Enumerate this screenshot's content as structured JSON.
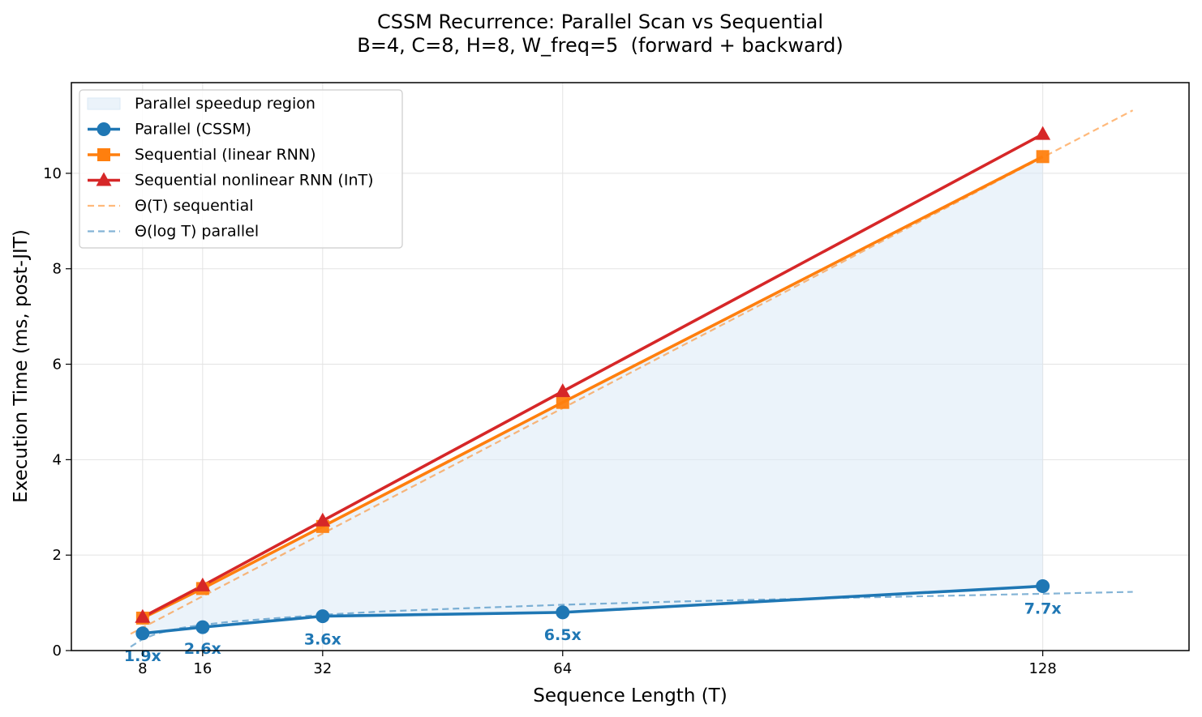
{
  "chart_data": {
    "type": "line",
    "title": "CSSM Recurrence: Parallel Scan vs Sequential",
    "subtitle": "B=4, C=8, H=8, W_freq=5  (forward + backward)",
    "xlabel": "Sequence Length (T)",
    "ylabel": "Execution Time (ms, post-JIT)",
    "x": [
      8,
      16,
      32,
      64,
      128
    ],
    "xlim": [
      -1.5,
      147.5
    ],
    "ylim": [
      0,
      11.9
    ],
    "xticks": [
      "8",
      "16",
      "32",
      "64",
      "128"
    ],
    "yticks": [
      "0",
      "2",
      "4",
      "6",
      "8",
      "10"
    ],
    "grid": true,
    "legend_position": "top-left",
    "series": [
      {
        "name": "Parallel (CSSM)",
        "kind": "line",
        "marker": "circle",
        "color": "#1f77b4",
        "values": [
          0.36,
          0.49,
          0.72,
          0.8,
          1.35
        ]
      },
      {
        "name": "Sequential (linear RNN)",
        "kind": "line",
        "marker": "square",
        "color": "#ff7f0e",
        "values": [
          0.68,
          1.3,
          2.6,
          5.2,
          10.35
        ]
      },
      {
        "name": "Sequential nonlinear RNN (InT)",
        "kind": "line",
        "marker": "triangle",
        "color": "#d62728",
        "values": [
          0.7,
          1.36,
          2.72,
          5.43,
          10.82
        ]
      }
    ],
    "reference_curves": [
      {
        "name": "Θ(T) sequential",
        "color": "#ff7f0e",
        "style": "dashed",
        "x": [
          6.4,
          140
        ],
        "values": [
          0.35,
          11.32
        ]
      },
      {
        "name": "Θ(log T) parallel",
        "color": "#1f77b4",
        "style": "dashed",
        "x": [
          6.4,
          8,
          10,
          13,
          16,
          20,
          25,
          32,
          40,
          50,
          64,
          80,
          100,
          128,
          140
        ],
        "values": [
          0.08,
          0.24,
          0.36,
          0.47,
          0.54,
          0.61,
          0.67,
          0.75,
          0.82,
          0.88,
          0.96,
          1.03,
          1.1,
          1.19,
          1.23
        ]
      }
    ],
    "fill_region": {
      "name": "Parallel speedup region",
      "color": "#dbeaf6"
    },
    "annotations": [
      {
        "x": 8,
        "y": -0.22,
        "text": "1.9x"
      },
      {
        "x": 16,
        "y": -0.07,
        "text": "2.6x"
      },
      {
        "x": 32,
        "y": 0.13,
        "text": "3.6x"
      },
      {
        "x": 64,
        "y": 0.22,
        "text": "6.5x"
      },
      {
        "x": 128,
        "y": 0.77,
        "text": "7.7x"
      }
    ],
    "legend": [
      {
        "label": "Parallel speedup region",
        "kind": "patch"
      },
      {
        "label": "Parallel (CSSM)",
        "kind": "line",
        "marker": "circle",
        "color": "#1f77b4"
      },
      {
        "label": "Sequential (linear RNN)",
        "kind": "line",
        "marker": "square",
        "color": "#ff7f0e"
      },
      {
        "label": "Sequential nonlinear RNN (InT)",
        "kind": "line",
        "marker": "triangle",
        "color": "#d62728"
      },
      {
        "label": "Θ(T) sequential",
        "kind": "dashed",
        "color": "#ff7f0e"
      },
      {
        "label": "Θ(log T) parallel",
        "kind": "dashed",
        "color": "#1f77b4"
      }
    ]
  }
}
